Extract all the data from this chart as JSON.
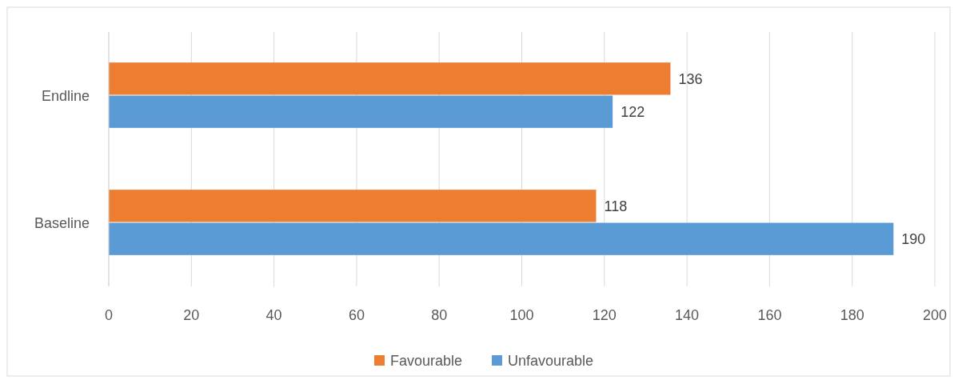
{
  "chart_data": {
    "type": "bar",
    "orientation": "horizontal",
    "categories": [
      "Endline",
      "Baseline"
    ],
    "series": [
      {
        "name": "Favourable",
        "color": "#ed7d31",
        "values": [
          136,
          118
        ]
      },
      {
        "name": "Unfavourable",
        "color": "#5b9bd5",
        "values": [
          122,
          190
        ]
      }
    ],
    "xlim": [
      0,
      200
    ],
    "xticks": [
      0,
      20,
      40,
      60,
      80,
      100,
      120,
      140,
      160,
      180,
      200
    ],
    "grid": "x",
    "legend": "bottom",
    "data_labels": true
  }
}
